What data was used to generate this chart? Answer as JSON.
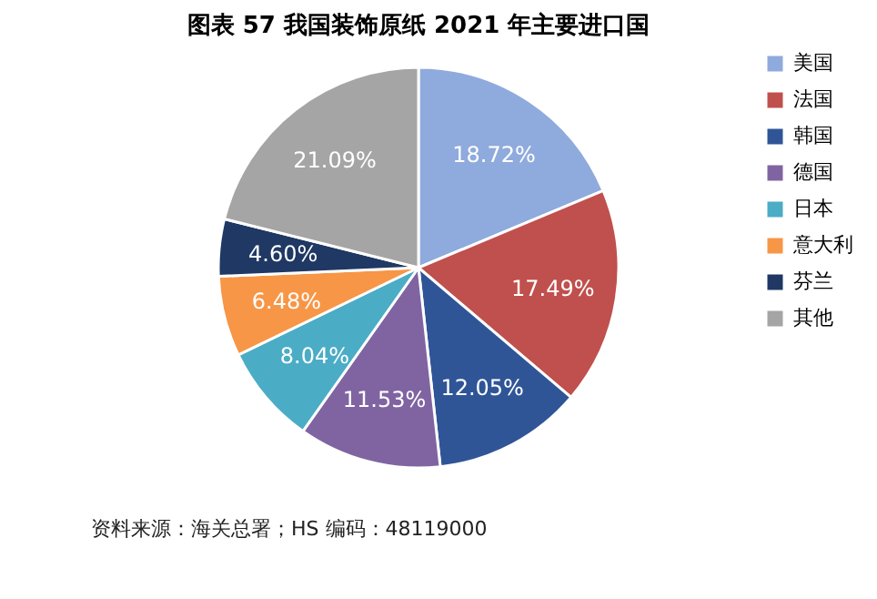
{
  "chart_data": {
    "type": "pie",
    "title": "图表 57 我国装饰原纸 2021 年主要进口国",
    "categories": [
      "美国",
      "法国",
      "韩国",
      "德国",
      "日本",
      "意大利",
      "芬兰",
      "其他"
    ],
    "values": [
      18.72,
      17.49,
      12.05,
      11.53,
      8.04,
      6.48,
      4.6,
      21.09
    ],
    "colors": [
      "#8faadc",
      "#c0504d",
      "#2f5597",
      "#8064a2",
      "#4bacc6",
      "#f79646",
      "#1f3864",
      "#a5a5a5"
    ],
    "value_labels": [
      "18.72%",
      "17.49%",
      "12.05%",
      "11.53%",
      "8.04%",
      "6.48%",
      "4.60%",
      "21.09%"
    ],
    "legend": "right",
    "annotations": [
      "资料来源：海关总署；HS 编码：48119000"
    ]
  }
}
